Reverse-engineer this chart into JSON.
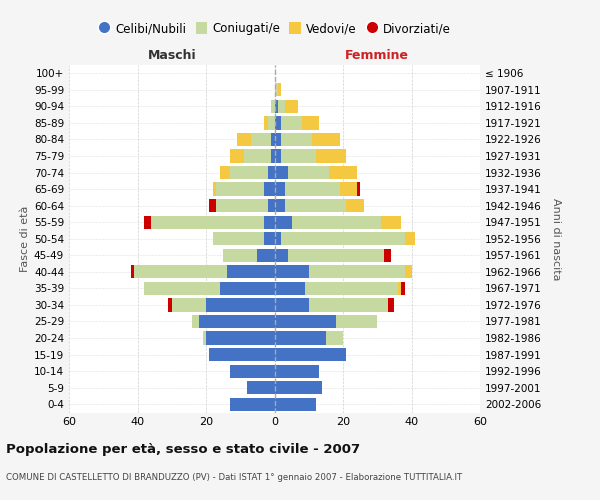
{
  "age_groups": [
    "0-4",
    "5-9",
    "10-14",
    "15-19",
    "20-24",
    "25-29",
    "30-34",
    "35-39",
    "40-44",
    "45-49",
    "50-54",
    "55-59",
    "60-64",
    "65-69",
    "70-74",
    "75-79",
    "80-84",
    "85-89",
    "90-94",
    "95-99",
    "100+"
  ],
  "birth_years": [
    "2002-2006",
    "1997-2001",
    "1992-1996",
    "1987-1991",
    "1982-1986",
    "1977-1981",
    "1972-1976",
    "1967-1971",
    "1962-1966",
    "1957-1961",
    "1952-1956",
    "1947-1951",
    "1942-1946",
    "1937-1941",
    "1932-1936",
    "1927-1931",
    "1922-1926",
    "1917-1921",
    "1912-1916",
    "1907-1911",
    "≤ 1906"
  ],
  "maschi_celibi": [
    13,
    8,
    13,
    19,
    20,
    22,
    20,
    16,
    14,
    5,
    3,
    3,
    2,
    3,
    2,
    1,
    1,
    0,
    0,
    0,
    0
  ],
  "maschi_coniugati": [
    0,
    0,
    0,
    0,
    1,
    2,
    10,
    22,
    27,
    10,
    15,
    33,
    15,
    14,
    11,
    8,
    6,
    2,
    1,
    0,
    0
  ],
  "maschi_vedovi": [
    0,
    0,
    0,
    0,
    0,
    0,
    0,
    0,
    0,
    0,
    0,
    0,
    0,
    1,
    3,
    4,
    4,
    1,
    0,
    0,
    0
  ],
  "maschi_divorziati": [
    0,
    0,
    0,
    0,
    0,
    0,
    1,
    0,
    1,
    0,
    0,
    2,
    2,
    0,
    0,
    0,
    0,
    0,
    0,
    0,
    0
  ],
  "femmine_celibi": [
    12,
    14,
    13,
    21,
    15,
    18,
    10,
    9,
    10,
    4,
    2,
    5,
    3,
    3,
    4,
    2,
    2,
    2,
    1,
    0,
    0
  ],
  "femmine_coniugati": [
    0,
    0,
    0,
    0,
    5,
    12,
    23,
    27,
    28,
    28,
    36,
    26,
    18,
    16,
    12,
    10,
    9,
    6,
    2,
    1,
    0
  ],
  "femmine_vedovi": [
    0,
    0,
    0,
    0,
    0,
    0,
    0,
    1,
    2,
    0,
    3,
    6,
    5,
    5,
    8,
    9,
    8,
    5,
    4,
    1,
    0
  ],
  "femmine_divorziati": [
    0,
    0,
    0,
    0,
    0,
    0,
    2,
    1,
    0,
    2,
    0,
    0,
    0,
    1,
    0,
    0,
    0,
    0,
    0,
    0,
    0
  ],
  "color_celibi": "#4472c4",
  "color_coniugati": "#c5d9a0",
  "color_vedovi": "#f5c842",
  "color_divorziati": "#cc0000",
  "xlim": 60,
  "title": "Popolazione per età, sesso e stato civile - 2007",
  "subtitle": "COMUNE DI CASTELLETTO DI BRANDUZZO (PV) - Dati ISTAT 1° gennaio 2007 - Elaborazione TUTTITALIA.IT",
  "xlabel_left": "Maschi",
  "xlabel_right": "Femmine",
  "ylabel_left": "Fasce di età",
  "ylabel_right": "Anni di nascita",
  "legend_labels": [
    "Celibi/Nubili",
    "Coniugati/e",
    "Vedovi/e",
    "Divorziati/e"
  ],
  "bg_color": "#f5f5f5",
  "plot_bg_color": "#ffffff"
}
